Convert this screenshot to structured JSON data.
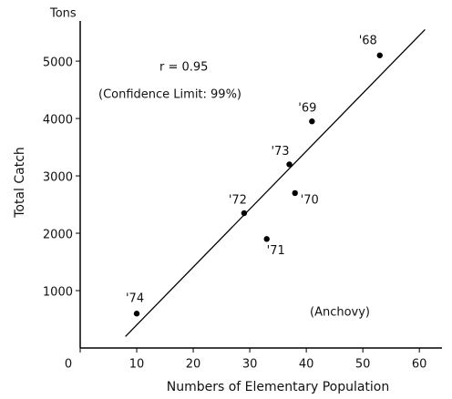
{
  "chart_data": {
    "type": "scatter",
    "unit_label": "Tons",
    "y_label": "Total Catch",
    "x_label": "Numbers of Elementary Population",
    "annotations": [
      "r = 0.95",
      "(Confidence Limit: 99%)",
      "(Anchovy)"
    ],
    "series": [
      {
        "color": "#000000",
        "labels": [
          "'68",
          "'69",
          "'73",
          "'70",
          "'72",
          "'71",
          "'74"
        ],
        "x": [
          53,
          41,
          37,
          38,
          29,
          33,
          10
        ],
        "values": [
          5100,
          3950,
          3200,
          2700,
          2350,
          1900,
          600
        ]
      }
    ],
    "fit_line": {
      "x": [
        8,
        61
      ],
      "y": [
        200,
        5550
      ]
    },
    "xlim": [
      0,
      64
    ],
    "ylim": [
      0,
      5700
    ],
    "xticks": [
      0,
      10,
      20,
      30,
      40,
      50,
      60
    ],
    "yticks": [
      1000,
      2000,
      3000,
      4000,
      5000
    ]
  }
}
